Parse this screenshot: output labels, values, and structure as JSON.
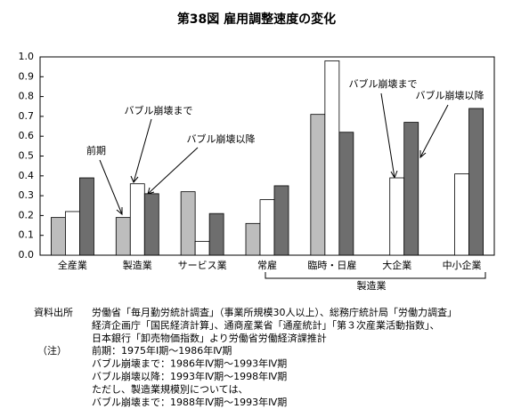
{
  "chart_data": {
    "type": "bar",
    "title": "第38図 雇用調整速度の変化",
    "categories": [
      "全産業",
      "製造業",
      "サービス業",
      "常雇",
      "臨時・日雇",
      "大企業",
      "中小企業"
    ],
    "series": [
      {
        "name": "前期",
        "color": "#bdbdbd",
        "values": [
          0.19,
          0.19,
          0.32,
          0.16,
          0.71,
          null,
          null
        ]
      },
      {
        "name": "バブル崩壊まで",
        "color": "#ffffff",
        "values": [
          0.22,
          0.36,
          0.07,
          0.28,
          0.98,
          0.39,
          0.41
        ]
      },
      {
        "name": "バブル崩壊以降",
        "color": "#6e6e6e",
        "values": [
          0.39,
          0.31,
          0.21,
          0.35,
          0.62,
          0.67,
          0.74
        ]
      }
    ],
    "ylim": [
      0,
      1
    ],
    "yticks": [
      {
        "value": 0,
        "label": "0.0"
      },
      0.1,
      0.2,
      0.3,
      0.4,
      0.5,
      0.6,
      0.7,
      0.8,
      0.9,
      {
        "value": 1,
        "label": "1.0"
      }
    ],
    "annotations": [
      "前期",
      "バブル崩壊まで",
      "バブル崩壊以降",
      "バブル崩壊まで",
      "バブル崩壊以降"
    ],
    "group_label": "製造業"
  },
  "notes": {
    "source_label": "資料出所",
    "source_lines": [
      "労働省「毎月勤労統計調査」（事業所規模30人以上）、総務庁統計局「労働力調査」",
      "経済企画庁「国民経済計算」、通商産業省「通産統計」「第３次産業活動指数」、",
      "日本銀行「卸売物価指数」より労働省労働経済課推計"
    ],
    "note_label": "（注）",
    "note_lines": [
      "前期：1975年Ⅰ期〜1986年Ⅳ期",
      "バブル崩壊まで：1986年Ⅳ期〜1993年Ⅳ期",
      "バブル崩壊以降：1993年Ⅳ期〜1998年Ⅳ期",
      "ただし、製造業規模別については、",
      "バブル崩壊まで：1988年Ⅳ期〜1993年Ⅳ期"
    ]
  }
}
